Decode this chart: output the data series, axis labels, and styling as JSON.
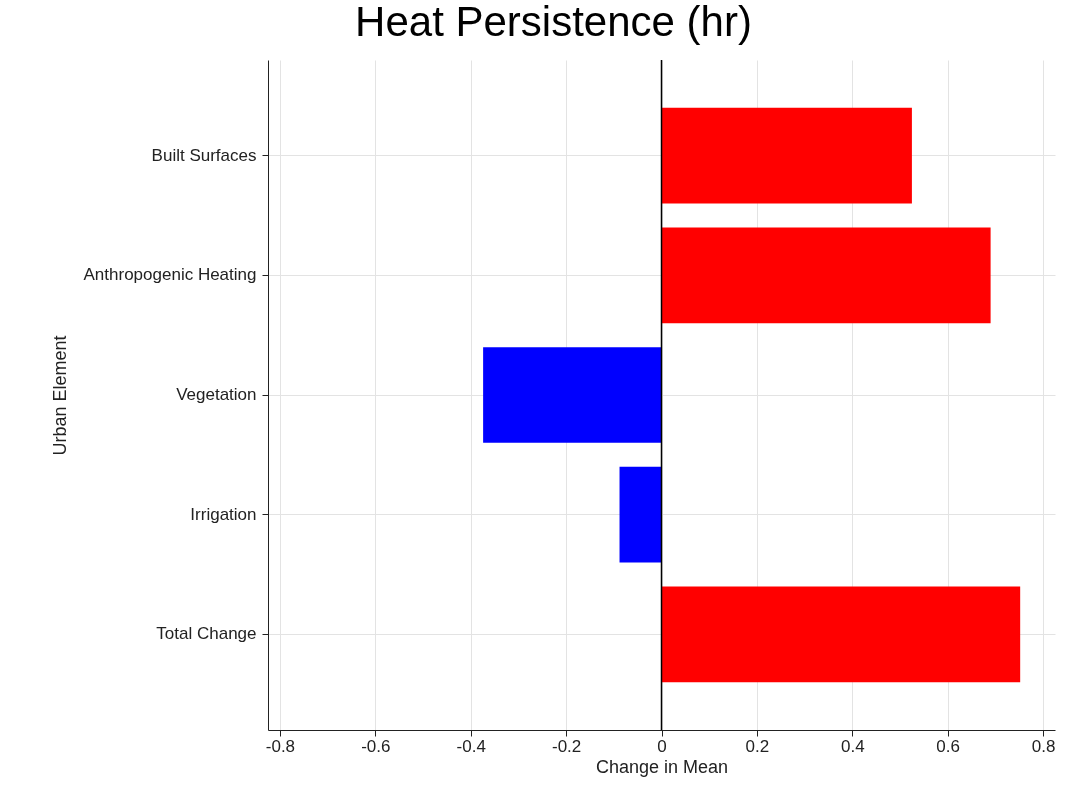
{
  "chart_data": {
    "type": "bar",
    "orientation": "horizontal",
    "title": "Heat Persistence (hr)",
    "xlabel": "Change in Mean",
    "ylabel": "Urban Element",
    "categories": [
      "Built Surfaces",
      "Anthropogenic Heating",
      "Vegetation",
      "Irrigation",
      "Total Change"
    ],
    "values": [
      0.525,
      0.69,
      -0.374,
      -0.088,
      0.752
    ],
    "colors": [
      "#ff0000",
      "#ff0000",
      "#0000ff",
      "#0000ff",
      "#ff0000"
    ],
    "xlim": [
      -0.825,
      0.825
    ],
    "xticks": [
      -0.8,
      -0.6,
      -0.4,
      -0.2,
      0,
      0.2,
      0.4,
      0.6,
      0.8
    ],
    "ref_lines": [
      {
        "axis": "x",
        "value": 0,
        "color": "#000000"
      }
    ],
    "grid": true
  }
}
